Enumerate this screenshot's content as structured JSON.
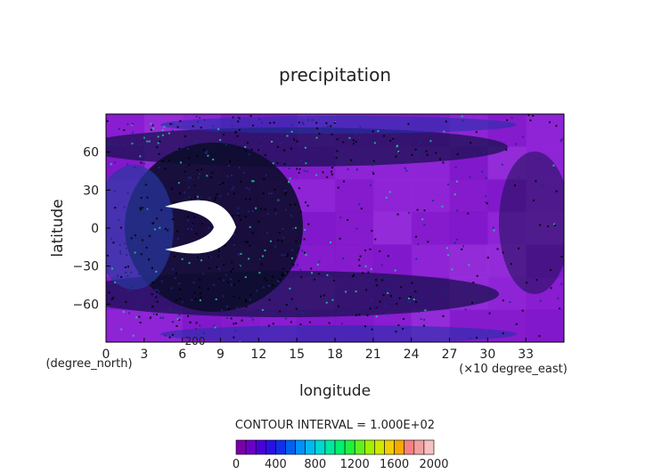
{
  "chart_data": {
    "type": "heatmap",
    "title": "precipitation",
    "xlabel": "longitude",
    "ylabel": "latitude",
    "x_unit_note": "(×10 degree_east)",
    "y_unit_note": "(degree_north)",
    "stray_label": "200",
    "x_ticks": [
      "0",
      "3",
      "6",
      "9",
      "12",
      "15",
      "18",
      "21",
      "24",
      "27",
      "30",
      "33"
    ],
    "x_tick_values": [
      0,
      3,
      6,
      9,
      12,
      15,
      18,
      21,
      24,
      27,
      30,
      33
    ],
    "y_ticks": [
      "60",
      "30",
      "0",
      "−30",
      "−60"
    ],
    "y_tick_values": [
      60,
      30,
      0,
      -30,
      -60
    ],
    "xlim": [
      0,
      36
    ],
    "ylim": [
      -90,
      90
    ],
    "contour_interval_text": "CONTOUR INTERVAL = 1.000E+02",
    "colorbar": {
      "ticks": [
        "0",
        "400",
        "800",
        "1200",
        "1600",
        "2000"
      ],
      "tick_values": [
        0,
        400,
        800,
        1200,
        1600,
        2000
      ],
      "range": [
        0,
        2000
      ],
      "colors": [
        "#7a00a8",
        "#6a00c8",
        "#4a00d8",
        "#2a10e0",
        "#1030e8",
        "#0060f0",
        "#0090f8",
        "#00b8f0",
        "#00d8d0",
        "#00e8a0",
        "#00f070",
        "#20f040",
        "#60f020",
        "#a0f000",
        "#d0e800",
        "#f0d000",
        "#f8a800",
        "#f88080",
        "#f0a0a0",
        "#f8c0c0"
      ]
    }
  }
}
